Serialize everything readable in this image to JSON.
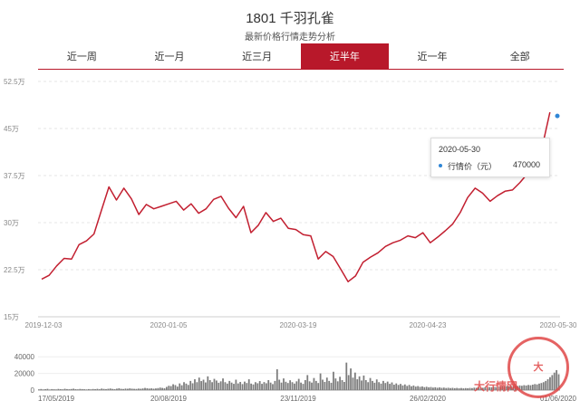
{
  "header": {
    "title": "1801 千羽孔雀",
    "subtitle": "最新价格行情走势分析"
  },
  "tabs": [
    {
      "label": "近一周",
      "active": false
    },
    {
      "label": "近一月",
      "active": false
    },
    {
      "label": "近三月",
      "active": false
    },
    {
      "label": "近半年",
      "active": true
    },
    {
      "label": "近一年",
      "active": false
    },
    {
      "label": "全部",
      "active": false
    }
  ],
  "colors": {
    "accent": "#b8182a",
    "line": "#c21f30",
    "tooltip_dot": "#2f86d6",
    "bars": "#7d7d7d"
  },
  "tooltip": {
    "date": "2020-05-30",
    "label": "行情价（元）",
    "value": "470000"
  },
  "watermark": {
    "circle_text": "大",
    "text": "大行情网"
  },
  "chart_data": [
    {
      "type": "line",
      "title": "",
      "xlabel": "",
      "ylabel": "",
      "ylim": [
        150000,
        525000
      ],
      "yticks": [
        150000,
        225000,
        300000,
        375000,
        450000,
        525000
      ],
      "ytick_labels": [
        "15万",
        "22.5万",
        "30万",
        "37.5万",
        "45万",
        "52.5万"
      ],
      "xtick_labels": [
        "2019-12-03",
        "2020-01-05",
        "2020-03-19",
        "2020-04-23",
        "2020-05-30"
      ],
      "grid": true,
      "series": [
        {
          "values": [
            210000,
            216000,
            231000,
            243000,
            242000,
            265000,
            271000,
            282000,
            320000,
            357000,
            336000,
            355000,
            338000,
            313000,
            329000,
            322000,
            326000,
            330000,
            334000,
            320000,
            330000,
            315000,
            322000,
            337000,
            342000,
            323000,
            308000,
            326000,
            284000,
            296000,
            316000,
            302000,
            307000,
            291000,
            289000,
            281000,
            279000,
            242000,
            254000,
            246000,
            226000,
            206000,
            215000,
            237000,
            245000,
            252000,
            262000,
            268000,
            272000,
            279000,
            276000,
            284000,
            268000,
            277000,
            287000,
            298000,
            316000,
            340000,
            355000,
            347000,
            334000,
            343000,
            350000,
            352000,
            364000,
            378000,
            395000,
            422000,
            476000,
            470000
          ]
        }
      ]
    },
    {
      "type": "bar",
      "title": "",
      "ylim": [
        0,
        50000
      ],
      "yticks": [
        0,
        20000,
        40000
      ],
      "ytick_labels": [
        "0",
        "20000",
        "40000"
      ],
      "xtick_labels": [
        "17/05/2019",
        "20/08/2019",
        "23/11/2019",
        "26/02/2020",
        "01/06/2020"
      ],
      "values": [
        900,
        1300,
        800,
        1100,
        1500,
        700,
        1200,
        1000,
        800,
        1400,
        1100,
        900,
        1600,
        1200,
        1000,
        1300,
        1700,
        1100,
        900,
        1400,
        1200,
        1000,
        800,
        1200,
        900,
        1300,
        1100,
        1500,
        1000,
        1800,
        1400,
        1200,
        1600,
        1900,
        1400,
        1100,
        1700,
        2200,
        1500,
        1300,
        1800,
        1600,
        2100,
        1700,
        1500,
        1400,
        1800,
        1600,
        2000,
        2600,
        2200,
        1800,
        2100,
        1700,
        2000,
        2400,
        3000,
        2600,
        2200,
        3800,
        5200,
        4800,
        7000,
        6000,
        4200,
        8000,
        5800,
        9500,
        7800,
        6200,
        11000,
        8200,
        13000,
        9500,
        15000,
        10800,
        12500,
        9200,
        16500,
        12000,
        9500,
        13500,
        11500,
        8800,
        10500,
        14000,
        9500,
        7800,
        11000,
        9000,
        7500,
        12500,
        8000,
        9800,
        7200,
        10200,
        8500,
        13000,
        7800,
        6800,
        9500,
        8200,
        10800,
        7500,
        9600,
        8200,
        12000,
        9000,
        7200,
        11000,
        25000,
        12500,
        9000,
        14000,
        10000,
        8500,
        11800,
        9500,
        7800,
        10500,
        13500,
        9000,
        7500,
        12000,
        18000,
        10500,
        9000,
        14500,
        11000,
        8500,
        20000,
        12500,
        9800,
        15000,
        11000,
        8800,
        22000,
        14000,
        10500,
        16000,
        12000,
        9800,
        33000,
        18000,
        26000,
        15000,
        21000,
        13000,
        16500,
        11500,
        17500,
        12000,
        9500,
        14500,
        11000,
        8800,
        12800,
        9500,
        7800,
        11000,
        8500,
        10200,
        7500,
        9200,
        6500,
        8000,
        6200,
        7400,
        5600,
        6800,
        5000,
        6200,
        4600,
        5500,
        4200,
        4800,
        3900,
        4400,
        3500,
        4000,
        3300,
        3700,
        3000,
        3400,
        2800,
        3200,
        2700,
        3000,
        2500,
        2800,
        2400,
        2700,
        2300,
        2600,
        2200,
        2500,
        2100,
        2400,
        2200,
        2600,
        2400,
        2900,
        2700,
        3200,
        3000,
        2800,
        3300,
        3100,
        3600,
        3400,
        3900,
        3600,
        4200,
        3900,
        4500,
        4200,
        4800,
        4400,
        5000,
        4600,
        5300,
        4900,
        5600,
        5200,
        5900,
        5500,
        6200,
        5800,
        6500,
        7200,
        6800,
        7800,
        8500,
        9500,
        11000,
        13000,
        15500,
        18000,
        21000,
        24000,
        19000
      ]
    }
  ]
}
